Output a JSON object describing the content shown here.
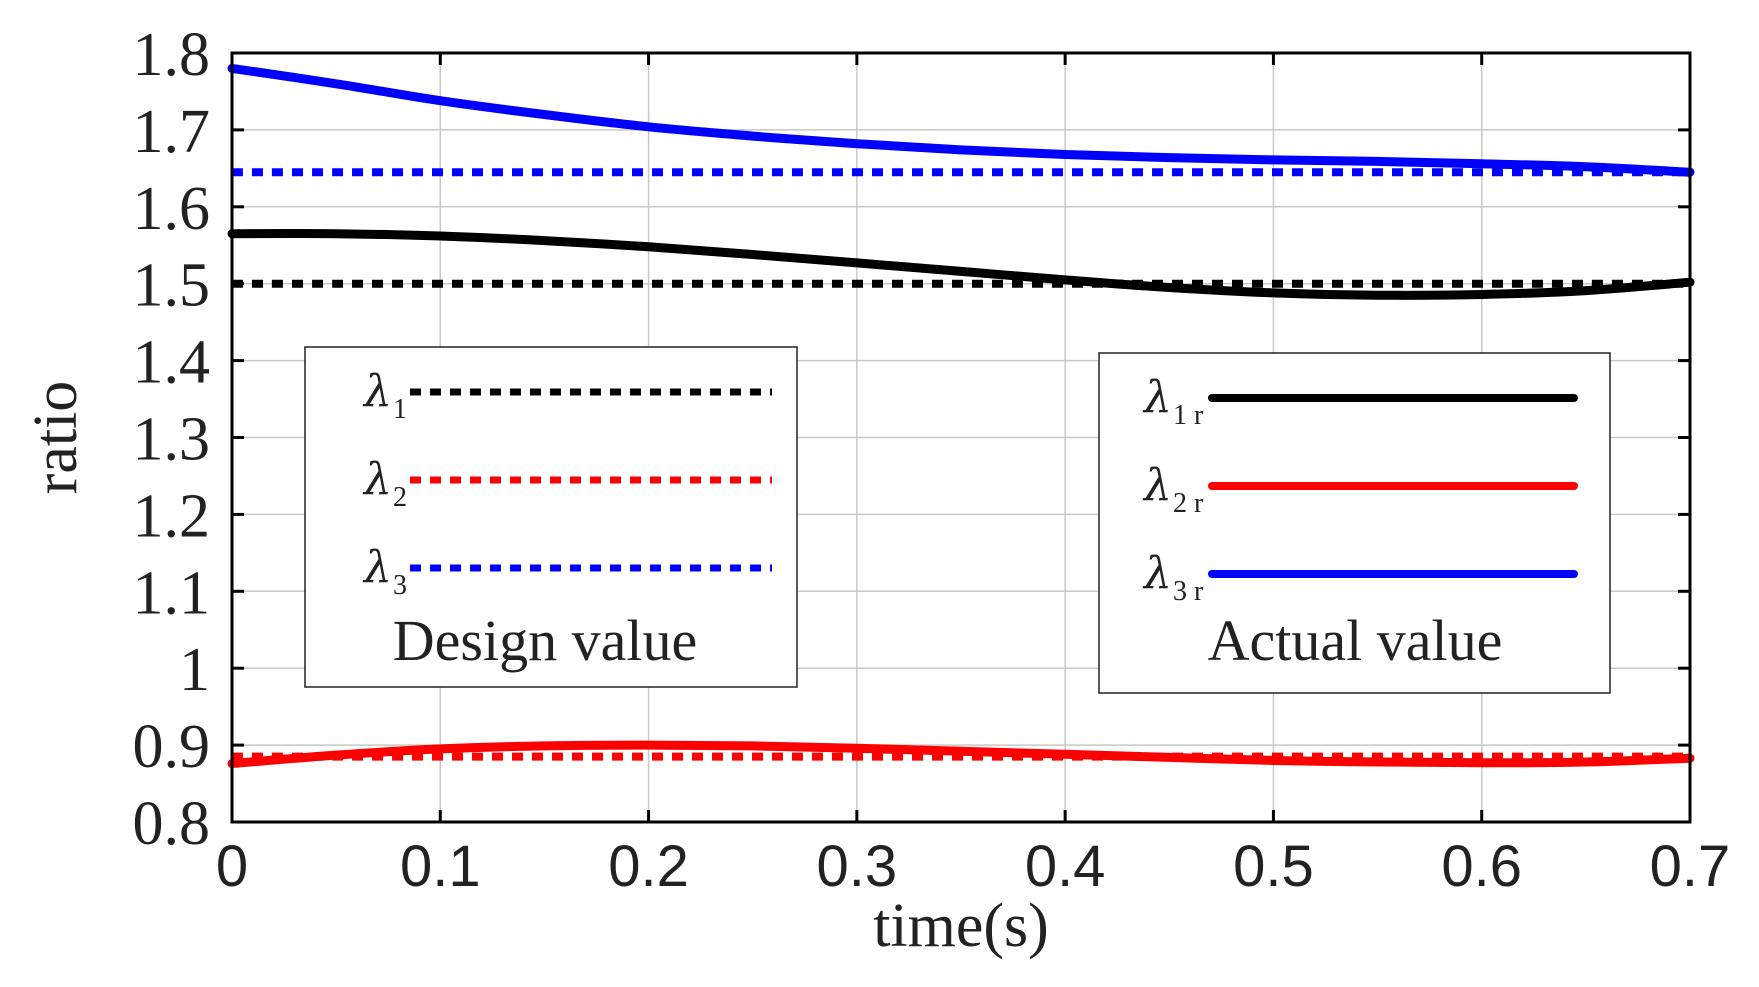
{
  "chart_data": {
    "type": "line",
    "title": "",
    "xlabel": "time(s)",
    "ylabel": "ratio",
    "xlim": [
      0,
      0.7
    ],
    "ylim": [
      0.8,
      1.8
    ],
    "grid": true,
    "x_ticks": [
      0,
      0.1,
      0.2,
      0.3,
      0.4,
      0.5,
      0.6,
      0.7
    ],
    "x_tick_labels": [
      "0",
      "0.1",
      "0.2",
      "0.3",
      "0.4",
      "0.5",
      "0.6",
      "0.7"
    ],
    "y_ticks": [
      0.8,
      0.9,
      1.0,
      1.1,
      1.2,
      1.3,
      1.4,
      1.5,
      1.6,
      1.7,
      1.8
    ],
    "y_tick_labels": [
      "0.8",
      "0.9",
      "1",
      "1.1",
      "1.2",
      "1.3",
      "1.4",
      "1.5",
      "1.6",
      "1.7",
      "1.8"
    ],
    "x": [
      0,
      0.05,
      0.1,
      0.15,
      0.2,
      0.25,
      0.3,
      0.35,
      0.4,
      0.45,
      0.5,
      0.55,
      0.6,
      0.65,
      0.7
    ],
    "series": [
      {
        "name": "λ1",
        "group": "design",
        "color": "#000000",
        "style": "dashed",
        "values": [
          1.5,
          1.5,
          1.5,
          1.5,
          1.5,
          1.5,
          1.5,
          1.5,
          1.5,
          1.5,
          1.5,
          1.5,
          1.5,
          1.5,
          1.5
        ]
      },
      {
        "name": "λ2",
        "group": "design",
        "color": "#ff0000",
        "style": "dashed",
        "values": [
          0.885,
          0.885,
          0.885,
          0.885,
          0.885,
          0.885,
          0.885,
          0.885,
          0.885,
          0.885,
          0.885,
          0.885,
          0.885,
          0.885,
          0.885
        ]
      },
      {
        "name": "λ3",
        "group": "design",
        "color": "#0000ff",
        "style": "dashed",
        "values": [
          1.645,
          1.645,
          1.645,
          1.645,
          1.645,
          1.645,
          1.645,
          1.645,
          1.645,
          1.645,
          1.645,
          1.645,
          1.645,
          1.645,
          1.645
        ]
      },
      {
        "name": "λ1r",
        "group": "actual",
        "color": "#000000",
        "style": "solid",
        "values": [
          1.565,
          1.565,
          1.562,
          1.556,
          1.548,
          1.538,
          1.527,
          1.516,
          1.505,
          1.495,
          1.488,
          1.485,
          1.486,
          1.491,
          1.502
        ]
      },
      {
        "name": "λ2r",
        "group": "actual",
        "color": "#ff0000",
        "style": "solid",
        "values": [
          0.876,
          0.887,
          0.895,
          0.899,
          0.9,
          0.899,
          0.896,
          0.892,
          0.888,
          0.884,
          0.88,
          0.878,
          0.877,
          0.878,
          0.883
        ]
      },
      {
        "name": "λ3r",
        "group": "actual",
        "color": "#0000ff",
        "style": "solid",
        "values": [
          1.78,
          1.76,
          1.738,
          1.72,
          1.704,
          1.692,
          1.682,
          1.674,
          1.668,
          1.664,
          1.661,
          1.659,
          1.656,
          1.652,
          1.645
        ]
      }
    ],
    "legends": [
      {
        "title": "Design value",
        "placement": "center-left",
        "entries": [
          {
            "symbol": "λ",
            "sub": "1",
            "color": "#000000",
            "style": "dashed"
          },
          {
            "symbol": "λ",
            "sub": "2",
            "color": "#ff0000",
            "style": "dashed"
          },
          {
            "symbol": "λ",
            "sub": "3",
            "color": "#0000ff",
            "style": "dashed"
          }
        ]
      },
      {
        "title": "Actual value",
        "placement": "center-right",
        "entries": [
          {
            "symbol": "λ",
            "sub": "1 r",
            "color": "#000000",
            "style": "solid"
          },
          {
            "symbol": "λ",
            "sub": "2 r",
            "color": "#ff0000",
            "style": "solid"
          },
          {
            "symbol": "λ",
            "sub": "3 r",
            "color": "#0000ff",
            "style": "solid"
          }
        ]
      }
    ]
  }
}
